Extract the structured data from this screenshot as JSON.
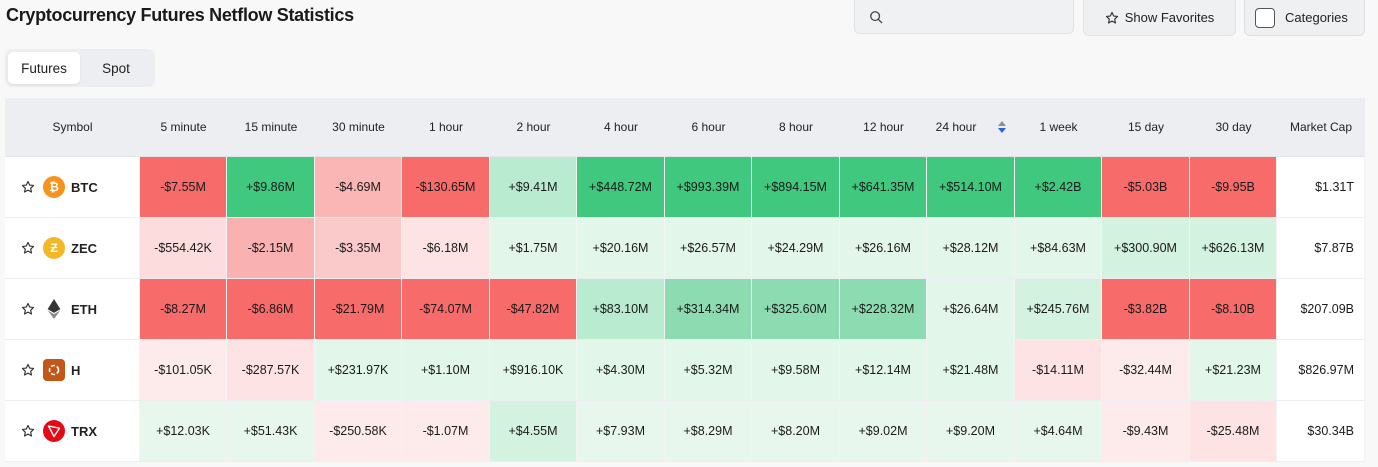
{
  "header": {
    "title": "Cryptocurrency Futures Netflow Statistics",
    "search_placeholder": "",
    "show_favorites_label": "Show Favorites",
    "categories_label": "Categories"
  },
  "tabs": [
    {
      "label": "Futures",
      "active": true
    },
    {
      "label": "Spot",
      "active": false
    }
  ],
  "table": {
    "columns": [
      "Symbol",
      "5 minute",
      "15 minute",
      "30 minute",
      "1 hour",
      "2 hour",
      "4 hour",
      "6 hour",
      "8 hour",
      "12 hour",
      "24 hour",
      "1 week",
      "15 day",
      "30 day",
      "Market Cap"
    ],
    "sorted_column": "24 hour",
    "rows": [
      {
        "symbol": "BTC",
        "icon": "bitcoin-icon",
        "icon_color": "#f7931a",
        "values": [
          "-$7.55M",
          "+$9.86M",
          "-$4.69M",
          "-$130.65M",
          "+$9.41M",
          "+$448.72M",
          "+$993.39M",
          "+$894.15M",
          "+$641.35M",
          "+$514.10M",
          "+$2.42B",
          "-$5.03B",
          "-$9.95B"
        ],
        "colors": [
          "#f76b6b",
          "#3fc87e",
          "#fab5b5",
          "#f76b6b",
          "#b8ebd0",
          "#3fc87e",
          "#3fc87e",
          "#3fc87e",
          "#3fc87e",
          "#3fc87e",
          "#3fc87e",
          "#f76b6b",
          "#f76b6b"
        ],
        "market_cap": "$1.31T"
      },
      {
        "symbol": "ZEC",
        "icon": "zcash-icon",
        "icon_color": "#f4b728",
        "values": [
          "-$554.42K",
          "-$2.15M",
          "-$3.35M",
          "-$6.18M",
          "+$1.75M",
          "+$20.16M",
          "+$26.57M",
          "+$24.29M",
          "+$26.16M",
          "+$28.12M",
          "+$84.63M",
          "+$300.90M",
          "+$626.13M"
        ],
        "colors": [
          "#fcdcdc",
          "#f9b1b1",
          "#fac9c9",
          "#fde3e3",
          "#e3f6ea",
          "#e3f6ea",
          "#e3f6ea",
          "#e3f6ea",
          "#e3f6ea",
          "#e3f6ea",
          "#e3f6ea",
          "#d3f2e0",
          "#d3f2e0"
        ],
        "market_cap": "$7.87B"
      },
      {
        "symbol": "ETH",
        "icon": "ethereum-icon",
        "icon_color": "#3c3c3d",
        "values": [
          "-$8.27M",
          "-$6.86M",
          "-$21.79M",
          "-$74.07M",
          "-$47.82M",
          "+$83.10M",
          "+$314.34M",
          "+$325.60M",
          "+$228.32M",
          "+$26.64M",
          "+$245.76M",
          "-$3.82B",
          "-$8.10B"
        ],
        "colors": [
          "#f76b6b",
          "#f76b6b",
          "#f76b6b",
          "#f76b6b",
          "#f76b6b",
          "#b8ebd0",
          "#8ddcb1",
          "#8ddcb1",
          "#8ddcb1",
          "#e3f6ea",
          "#d3f2e0",
          "#f76b6b",
          "#f76b6b"
        ],
        "market_cap": "$207.09B"
      },
      {
        "symbol": "H",
        "icon": "humanity-icon",
        "icon_color": "#c2571a",
        "values": [
          "-$101.05K",
          "-$287.57K",
          "+$231.97K",
          "+$1.10M",
          "+$916.10K",
          "+$4.30M",
          "+$5.32M",
          "+$9.58M",
          "+$12.14M",
          "+$21.48M",
          "-$14.11M",
          "-$32.44M",
          "+$21.23M"
        ],
        "colors": [
          "#fdeaea",
          "#fde3e3",
          "#e3f6ea",
          "#e3f6ea",
          "#e3f6ea",
          "#e3f6ea",
          "#e3f6ea",
          "#e3f6ea",
          "#e3f6ea",
          "#e3f6ea",
          "#fde3e3",
          "#fdeaea",
          "#e3f6ea"
        ],
        "market_cap": "$826.97M"
      },
      {
        "symbol": "TRX",
        "icon": "tron-icon",
        "icon_color": "#e50915",
        "values": [
          "+$12.03K",
          "+$51.43K",
          "-$250.58K",
          "-$1.07M",
          "+$4.55M",
          "+$7.93M",
          "+$8.29M",
          "+$8.20M",
          "+$9.02M",
          "+$9.20M",
          "+$4.64M",
          "-$9.43M",
          "-$25.48M"
        ],
        "colors": [
          "#e8f7ee",
          "#e8f7ee",
          "#fdeaea",
          "#fdeaea",
          "#d3f2e0",
          "#e8f7ee",
          "#e8f7ee",
          "#e8f7ee",
          "#e8f7ee",
          "#e8f7ee",
          "#e8f7ee",
          "#fdeaea",
          "#fde3e3"
        ],
        "market_cap": "$30.34B"
      }
    ]
  }
}
